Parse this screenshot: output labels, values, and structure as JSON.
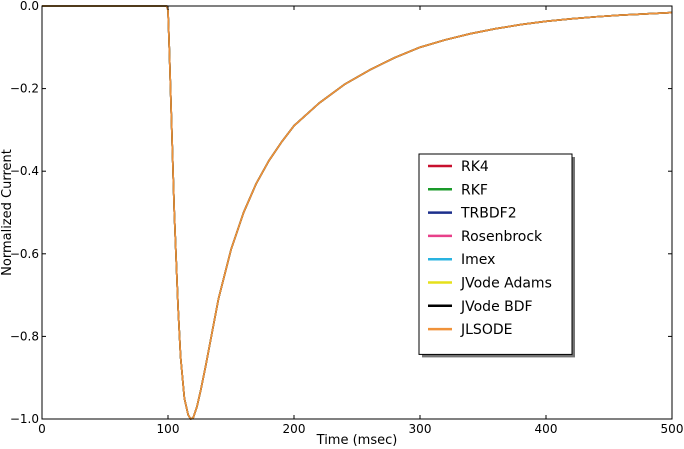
{
  "chart_data": {
    "type": "line",
    "xlabel": "Time (msec)",
    "ylabel": "Normalized Current",
    "xlim": [
      0,
      500
    ],
    "ylim": [
      -1.0,
      0.0
    ],
    "x_ticks": [
      0,
      100,
      200,
      300,
      400,
      500
    ],
    "x_tick_labels": [
      "0",
      "100",
      "200",
      "300",
      "400",
      "500"
    ],
    "y_ticks": [
      0.0,
      -0.2,
      -0.4,
      -0.6,
      -0.8,
      -1.0
    ],
    "y_tick_labels": [
      "0.0",
      "−0.2",
      "−0.4",
      "−0.6",
      "−0.8",
      "−1.0"
    ],
    "grid": false,
    "legend_position": "center-right",
    "x": [
      0,
      99,
      100,
      101,
      103,
      105,
      108,
      110,
      113,
      116,
      118,
      120,
      123,
      126,
      130,
      135,
      140,
      150,
      160,
      170,
      180,
      190,
      200,
      220,
      240,
      260,
      280,
      300,
      320,
      340,
      360,
      380,
      400,
      420,
      440,
      460,
      480,
      500
    ],
    "series": [
      {
        "name": "RK4",
        "color": "#c8102e",
        "values": [
          0.0,
          0.0,
          -0.01,
          -0.1,
          -0.3,
          -0.5,
          -0.73,
          -0.85,
          -0.95,
          -0.99,
          -1.0,
          -0.997,
          -0.97,
          -0.93,
          -0.87,
          -0.79,
          -0.71,
          -0.59,
          -0.5,
          -0.43,
          -0.375,
          -0.33,
          -0.29,
          -0.235,
          -0.19,
          -0.155,
          -0.125,
          -0.1,
          -0.082,
          -0.067,
          -0.055,
          -0.045,
          -0.037,
          -0.031,
          -0.026,
          -0.022,
          -0.019,
          -0.016
        ]
      },
      {
        "name": "RKF",
        "color": "#1a9a2a",
        "values": [
          0.0,
          0.0,
          -0.01,
          -0.1,
          -0.3,
          -0.5,
          -0.73,
          -0.85,
          -0.95,
          -0.99,
          -1.0,
          -0.997,
          -0.97,
          -0.93,
          -0.87,
          -0.79,
          -0.71,
          -0.59,
          -0.5,
          -0.43,
          -0.375,
          -0.33,
          -0.29,
          -0.235,
          -0.19,
          -0.155,
          -0.125,
          -0.1,
          -0.082,
          -0.067,
          -0.055,
          -0.045,
          -0.037,
          -0.031,
          -0.026,
          -0.022,
          -0.019,
          -0.016
        ]
      },
      {
        "name": "TRBDF2",
        "color": "#1c2f8c",
        "values": [
          0.0,
          0.0,
          -0.01,
          -0.1,
          -0.3,
          -0.5,
          -0.73,
          -0.85,
          -0.95,
          -0.99,
          -1.0,
          -0.997,
          -0.97,
          -0.93,
          -0.87,
          -0.79,
          -0.71,
          -0.59,
          -0.5,
          -0.43,
          -0.375,
          -0.33,
          -0.29,
          -0.235,
          -0.19,
          -0.155,
          -0.125,
          -0.1,
          -0.082,
          -0.067,
          -0.055,
          -0.045,
          -0.037,
          -0.031,
          -0.026,
          -0.022,
          -0.019,
          -0.016
        ]
      },
      {
        "name": "Rosenbrock",
        "color": "#e8408a",
        "values": [
          0.0,
          0.0,
          -0.01,
          -0.1,
          -0.3,
          -0.5,
          -0.73,
          -0.85,
          -0.95,
          -0.99,
          -1.0,
          -0.997,
          -0.97,
          -0.93,
          -0.87,
          -0.79,
          -0.71,
          -0.59,
          -0.5,
          -0.43,
          -0.375,
          -0.33,
          -0.29,
          -0.235,
          -0.19,
          -0.155,
          -0.125,
          -0.1,
          -0.082,
          -0.067,
          -0.055,
          -0.045,
          -0.037,
          -0.031,
          -0.026,
          -0.022,
          -0.019,
          -0.016
        ]
      },
      {
        "name": "Imex",
        "color": "#29b3e0",
        "values": [
          0.0,
          0.0,
          -0.01,
          -0.1,
          -0.3,
          -0.5,
          -0.73,
          -0.85,
          -0.95,
          -0.99,
          -1.0,
          -0.997,
          -0.97,
          -0.93,
          -0.87,
          -0.79,
          -0.71,
          -0.59,
          -0.5,
          -0.43,
          -0.375,
          -0.33,
          -0.29,
          -0.235,
          -0.19,
          -0.155,
          -0.125,
          -0.1,
          -0.082,
          -0.067,
          -0.055,
          -0.045,
          -0.037,
          -0.031,
          -0.026,
          -0.022,
          -0.019,
          -0.016
        ]
      },
      {
        "name": "JVode Adams",
        "color": "#e5e01a",
        "values": [
          0.0,
          0.0,
          -0.01,
          -0.1,
          -0.3,
          -0.5,
          -0.73,
          -0.85,
          -0.95,
          -0.99,
          -1.0,
          -0.997,
          -0.97,
          -0.93,
          -0.87,
          -0.79,
          -0.71,
          -0.59,
          -0.5,
          -0.43,
          -0.375,
          -0.33,
          -0.29,
          -0.235,
          -0.19,
          -0.155,
          -0.125,
          -0.1,
          -0.082,
          -0.067,
          -0.055,
          -0.045,
          -0.037,
          -0.031,
          -0.026,
          -0.022,
          -0.019,
          -0.016
        ]
      },
      {
        "name": "JVode BDF",
        "color": "#000000",
        "values": [
          0.0,
          0.0,
          -0.01,
          -0.1,
          -0.3,
          -0.5,
          -0.73,
          -0.85,
          -0.95,
          -0.99,
          -1.0,
          -0.997,
          -0.97,
          -0.93,
          -0.87,
          -0.79,
          -0.71,
          -0.59,
          -0.5,
          -0.43,
          -0.375,
          -0.33,
          -0.29,
          -0.235,
          -0.19,
          -0.155,
          -0.125,
          -0.1,
          -0.082,
          -0.067,
          -0.055,
          -0.045,
          -0.037,
          -0.031,
          -0.026,
          -0.022,
          -0.019,
          -0.016
        ]
      },
      {
        "name": "JLSODE",
        "color": "#f0923a",
        "values": [
          0.0,
          0.0,
          -0.01,
          -0.1,
          -0.3,
          -0.5,
          -0.73,
          -0.85,
          -0.95,
          -0.99,
          -1.0,
          -0.997,
          -0.97,
          -0.93,
          -0.87,
          -0.79,
          -0.71,
          -0.59,
          -0.5,
          -0.43,
          -0.375,
          -0.33,
          -0.29,
          -0.235,
          -0.19,
          -0.155,
          -0.125,
          -0.1,
          -0.082,
          -0.067,
          -0.055,
          -0.045,
          -0.037,
          -0.031,
          -0.026,
          -0.022,
          -0.019,
          -0.016
        ]
      }
    ]
  }
}
